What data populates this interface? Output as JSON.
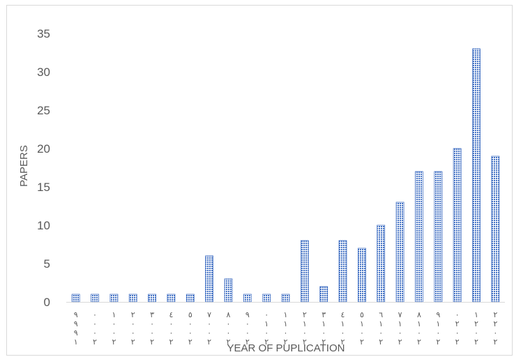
{
  "chart_data": {
    "type": "bar",
    "title": "",
    "xlabel": "YEAR OF PUPLICATION",
    "ylabel": "PAPERS",
    "ylim": [
      0,
      35
    ],
    "yticks": [
      "0",
      "5",
      "10",
      "15",
      "20",
      "25",
      "30",
      "35"
    ],
    "categories": [
      "١٩٩٩",
      "٢٠٠٠",
      "٢٠٠١",
      "٢٠٠٢",
      "٢٠٠٣",
      "٢٠٠٤",
      "٢٠٠٥",
      "٢٠٠٧",
      "٢٠٠٨",
      "٢٠٠٩",
      "٢٠١٠",
      "٢٠١١",
      "٢٠١٢",
      "٢٠١٣",
      "٢٠١٤",
      "٢٠١٥",
      "٢٠١٦",
      "٢٠١٧",
      "٢٠١٨",
      "٢٠١٩",
      "٢٠٢٠",
      "٢٠٢١",
      "٢٠٢٢"
    ],
    "values": [
      1,
      1,
      1,
      1,
      1,
      1,
      1,
      6,
      3,
      1,
      1,
      1,
      8,
      2,
      8,
      7,
      10,
      13,
      17,
      17,
      20,
      33,
      19
    ],
    "grid": false,
    "legend": "none",
    "bar_color": "#4472c4"
  }
}
